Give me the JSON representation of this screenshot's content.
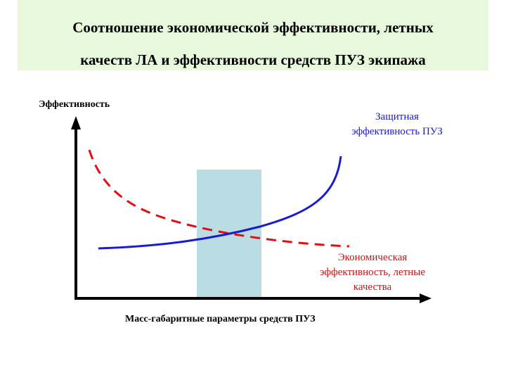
{
  "slide": {
    "title_line1": "Соотношение экономической эффективности, летных",
    "title_line2": "качеств ЛА и эффективности средств ПУЗ экипажа"
  },
  "diagram": {
    "y_axis_label": "Эффективность",
    "x_axis_label": "Масс-габаритные параметры средств ПУЗ",
    "protective_label": [
      "Защитная",
      "эффективность ПУЗ"
    ],
    "economic_label": [
      "Экономическая",
      "эффективность, летные",
      "качества"
    ],
    "colors": {
      "protective_curve": "#1a1ad0",
      "economic_curve": "#dd1111",
      "optimal_zone": "#b9dde3",
      "title_background": "#e8f8dc"
    }
  }
}
